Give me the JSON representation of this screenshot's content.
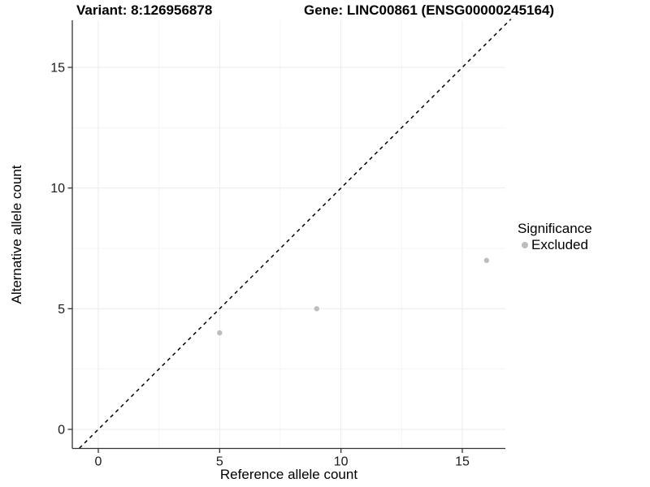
{
  "chart_data": {
    "type": "scatter",
    "title_left": "Variant: 8:126956878",
    "title_right": "Gene: LINC00861 (ENSG00000245164)",
    "xlabel": "Reference allele count",
    "ylabel": "Alternative allele count",
    "xlim": [
      -1.04,
      16.95
    ],
    "ylim": [
      -0.79,
      16.95
    ],
    "xticks": [
      0,
      5,
      10,
      15
    ],
    "yticks": [
      0,
      5,
      10,
      15
    ],
    "xticks_minor": [
      2.5,
      7.5,
      12.5
    ],
    "yticks_minor": [
      2.5,
      7.5,
      12.5
    ],
    "grid": "on",
    "legend_position": "right",
    "legend": {
      "title": "Significance",
      "entries": [
        {
          "label": "Excluded",
          "color": "#bdbdbd"
        }
      ]
    },
    "series": [
      {
        "name": "Excluded",
        "color": "#bdbdbd",
        "points": [
          {
            "x": 5,
            "y": 4
          },
          {
            "x": 9,
            "y": 5
          },
          {
            "x": 16,
            "y": 7
          }
        ]
      }
    ],
    "identity_line": {
      "style": "dashed",
      "color": "#000000",
      "from": [
        -0.78,
        -0.78
      ],
      "to": [
        17,
        17
      ]
    },
    "colors": {
      "background": "#ffffff",
      "grid_major": "#ebebeb",
      "grid_minor": "#f5f5f5",
      "axis_line": "#333333",
      "tick_label": "#1a1a1a",
      "point": "#bdbdbd"
    }
  }
}
